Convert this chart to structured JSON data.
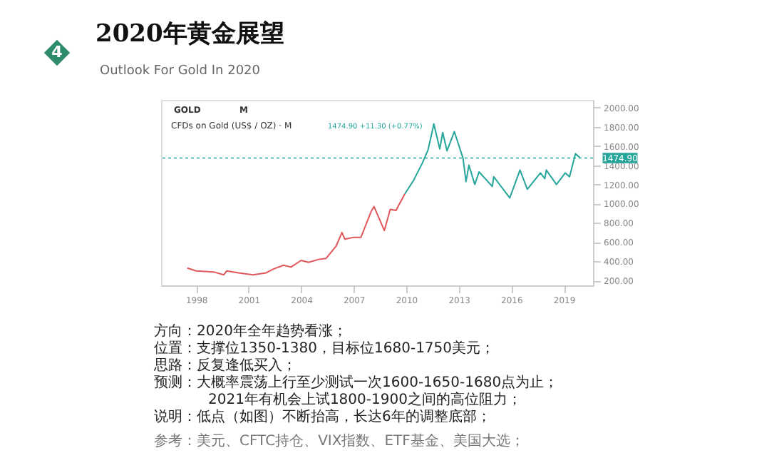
{
  "chart_data": {
    "type": "line",
    "title": "2020年黄金展望",
    "subtitle": "Outlook For Gold In 2020",
    "annotations": [
      "4",
      "GOLD",
      "M",
      "CFDs on Gold (US$ / OZ) · M",
      "1474.90 +11.30 (+0.77%)",
      "方向：2020年全年趋势看涨；",
      "位置：支撑位1350-1380，目标位1680-1750美元；",
      "思路：反复逢低买入；",
      "预测：大概率震荡上行至少测试一次1600-1650-1680点为止；",
      "2021年有机会上试1800-1900之间的高位阻力；",
      "说明：低点（如图）不断抬高，长达6年的调整底部；",
      "参考：美元、CFTC持仓、VIX指数、ETF基金、美国大选；"
    ],
    "series": [
      {
        "color": "#e0575b",
        "x": [
          "1997-07",
          "1998-01",
          "1999-01",
          "1999-08",
          "1999-10",
          "2000-06",
          "2001-04",
          "2002-01",
          "2002-06",
          "2003-01",
          "2003-06",
          "2004-01",
          "2004-06",
          "2005-01",
          "2005-06",
          "2006-01",
          "2006-05",
          "2006-07",
          "2007-01",
          "2007-06",
          "2008-01",
          "2008-03",
          "2008-10",
          "2009-02",
          "2009-06",
          "2009-12"
        ],
        "values": [
          330,
          300,
          290,
          260,
          300,
          280,
          260,
          280,
          320,
          360,
          340,
          410,
          390,
          420,
          430,
          560,
          700,
          630,
          650,
          650,
          920,
          970,
          720,
          940,
          930,
          1100
        ]
      },
      {
        "color": "#26a69a",
        "x": [
          "2009-12",
          "2010-06",
          "2010-12",
          "2011-04",
          "2011-08",
          "2011-12",
          "2012-02",
          "2012-05",
          "2012-10",
          "2013-04",
          "2013-06",
          "2013-08",
          "2013-12",
          "2014-03",
          "2014-12",
          "2015-01",
          "2015-12",
          "2016-07",
          "2016-12",
          "2017-09",
          "2017-12",
          "2018-01",
          "2018-08",
          "2019-02",
          "2019-05",
          "2019-09",
          "2019-12"
        ],
        "values": [
          1100,
          1240,
          1420,
          1560,
          1830,
          1570,
          1740,
          1550,
          1750,
          1470,
          1230,
          1400,
          1200,
          1330,
          1180,
          1280,
          1060,
          1350,
          1150,
          1320,
          1260,
          1350,
          1200,
          1320,
          1280,
          1520,
          1480
        ]
      }
    ],
    "xlim": [
      "1996-01",
      "2020-09"
    ],
    "xticks": [
      "1998",
      "2001",
      "2004",
      "2007",
      "2010",
      "2013",
      "2016",
      "2019"
    ],
    "ylim": [
      150,
      2080
    ],
    "yticks": [
      {
        "value": 200,
        "label": "200.00"
      },
      {
        "value": 400,
        "label": "400.00"
      },
      {
        "value": 600,
        "label": "600.00"
      },
      {
        "value": 800,
        "label": "800.00"
      },
      {
        "value": 1000,
        "label": "1000.00"
      },
      {
        "value": 1200,
        "label": "1200.00"
      },
      {
        "value": 1400,
        "label": "1400.00"
      },
      {
        "value": 1600,
        "label": "1600.00"
      },
      {
        "value": 1800,
        "label": "1800.00"
      },
      {
        "value": 2000,
        "label": "2000.00"
      }
    ],
    "ref_lines": [
      {
        "axis": "y",
        "value": 1474.9,
        "label": "1474.90",
        "color": "#26a69a",
        "line_style": "dotted"
      }
    ],
    "line_style": "solid"
  }
}
